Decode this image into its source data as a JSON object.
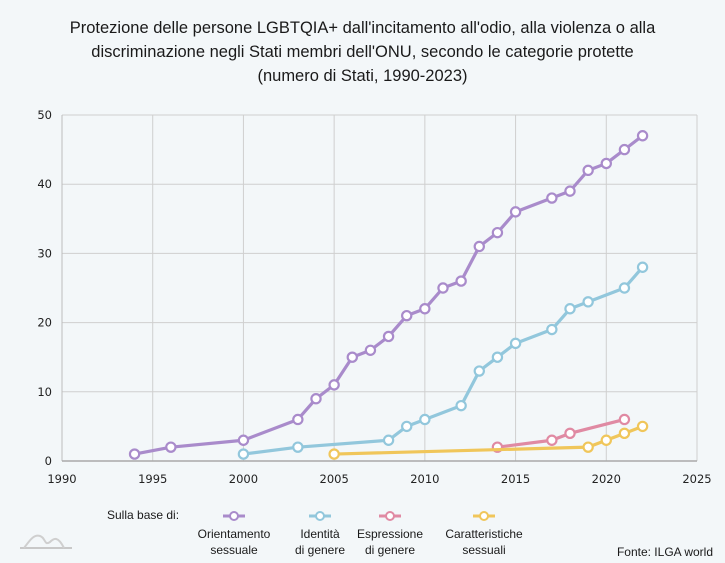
{
  "chart_data": {
    "type": "line",
    "title_lines": [
      "Protezione delle persone LGBTQIA+ dall'incitamento all'odio, alla violenza o alla",
      "discriminazione negli Stati membri dell'ONU, secondo le categorie protette",
      "(numero di Stati, 1990-2023)"
    ],
    "xlabel": "",
    "ylabel": "",
    "xlim": [
      1990,
      2025
    ],
    "ylim": [
      0,
      50
    ],
    "xticks": [
      1990,
      1995,
      2000,
      2005,
      2010,
      2015,
      2020,
      2025
    ],
    "yticks": [
      0,
      10,
      20,
      30,
      40,
      50
    ],
    "grid": true,
    "legend_title": "Sulla base di:",
    "legend_position": "bottom",
    "series": [
      {
        "name": "Orientamento sessuale",
        "label_lines": [
          "Orientamento",
          "sessuale"
        ],
        "color": "#a98bcb",
        "points": [
          [
            1994,
            1
          ],
          [
            1996,
            2
          ],
          [
            2000,
            3
          ],
          [
            2003,
            6
          ],
          [
            2004,
            9
          ],
          [
            2005,
            11
          ],
          [
            2006,
            15
          ],
          [
            2007,
            16
          ],
          [
            2008,
            18
          ],
          [
            2009,
            21
          ],
          [
            2010,
            22
          ],
          [
            2011,
            25
          ],
          [
            2012,
            26
          ],
          [
            2013,
            31
          ],
          [
            2014,
            33
          ],
          [
            2015,
            36
          ],
          [
            2017,
            38
          ],
          [
            2018,
            39
          ],
          [
            2019,
            42
          ],
          [
            2020,
            43
          ],
          [
            2021,
            45
          ],
          [
            2022,
            47
          ]
        ]
      },
      {
        "name": "Identità di genere",
        "label_lines": [
          "Identità",
          "di genere"
        ],
        "color": "#92c7dc",
        "points": [
          [
            2000,
            1
          ],
          [
            2003,
            2
          ],
          [
            2008,
            3
          ],
          [
            2009,
            5
          ],
          [
            2010,
            6
          ],
          [
            2012,
            8
          ],
          [
            2013,
            13
          ],
          [
            2014,
            15
          ],
          [
            2015,
            17
          ],
          [
            2017,
            19
          ],
          [
            2018,
            22
          ],
          [
            2019,
            23
          ],
          [
            2021,
            25
          ],
          [
            2022,
            28
          ]
        ]
      },
      {
        "name": "Espressione di genere",
        "label_lines": [
          "Espressione",
          "di genere"
        ],
        "color": "#e08aa3",
        "points": [
          [
            2014,
            2
          ],
          [
            2017,
            3
          ],
          [
            2018,
            4
          ],
          [
            2021,
            6
          ]
        ]
      },
      {
        "name": "Caratteristiche sessuali",
        "label_lines": [
          "Caratteristiche",
          "sessuali"
        ],
        "color": "#f0c65a",
        "points": [
          [
            2005,
            1
          ],
          [
            2019,
            2
          ],
          [
            2020,
            3
          ],
          [
            2021,
            4
          ],
          [
            2022,
            5
          ]
        ]
      }
    ],
    "source": "Fonte: ILGA world"
  }
}
